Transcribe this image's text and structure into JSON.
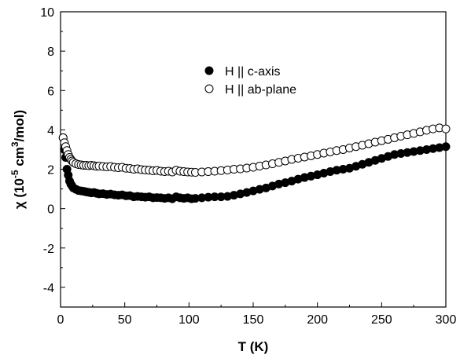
{
  "chart_data": {
    "type": "scatter",
    "xlabel": "T (K)",
    "ylabel": {
      "prefix": "χ (10",
      "exp1": "-5",
      "middle": " cm",
      "exp2": "3",
      "suffix": "/mol)"
    },
    "xlim": [
      0,
      300
    ],
    "ylim": [
      -5,
      10
    ],
    "x_ticks": [
      0,
      50,
      100,
      150,
      200,
      250,
      300
    ],
    "y_ticks": [
      -4,
      -2,
      0,
      2,
      4,
      6,
      8,
      10
    ],
    "grid": false,
    "legend_position": "upper-center",
    "series": [
      {
        "name": "H || c-axis",
        "marker": "filled-circle",
        "color": "#000000",
        "x": [
          2,
          3,
          4,
          5,
          6,
          7,
          8,
          9,
          10,
          12,
          14,
          16,
          18,
          20,
          22,
          24,
          26,
          28,
          30,
          33,
          36,
          39,
          42,
          45,
          48,
          51,
          54,
          57,
          60,
          63,
          66,
          69,
          72,
          75,
          78,
          81,
          84,
          87,
          90,
          93,
          96,
          99,
          102,
          105,
          110,
          115,
          120,
          125,
          130,
          135,
          140,
          145,
          150,
          155,
          160,
          165,
          170,
          175,
          180,
          185,
          190,
          195,
          200,
          205,
          210,
          215,
          220,
          225,
          230,
          235,
          240,
          245,
          250,
          255,
          260,
          265,
          270,
          275,
          280,
          285,
          290,
          295,
          300
        ],
        "y": [
          3.6,
          3.0,
          2.6,
          2.0,
          1.7,
          1.4,
          1.25,
          1.15,
          1.05,
          0.98,
          0.92,
          0.9,
          0.88,
          0.85,
          0.83,
          0.8,
          0.82,
          0.78,
          0.75,
          0.76,
          0.72,
          0.74,
          0.7,
          0.68,
          0.7,
          0.65,
          0.66,
          0.6,
          0.62,
          0.6,
          0.58,
          0.6,
          0.55,
          0.56,
          0.55,
          0.52,
          0.55,
          0.5,
          0.6,
          0.55,
          0.52,
          0.55,
          0.5,
          0.52,
          0.55,
          0.58,
          0.6,
          0.6,
          0.62,
          0.68,
          0.75,
          0.82,
          0.9,
          0.98,
          1.05,
          1.15,
          1.25,
          1.32,
          1.4,
          1.5,
          1.58,
          1.65,
          1.72,
          1.8,
          1.88,
          1.95,
          2.0,
          2.05,
          2.15,
          2.25,
          2.35,
          2.45,
          2.55,
          2.65,
          2.75,
          2.8,
          2.85,
          2.9,
          2.95,
          3.0,
          3.05,
          3.1,
          3.15
        ]
      },
      {
        "name": "H || ab-plane",
        "marker": "open-circle",
        "color": "#000000",
        "x": [
          2,
          3,
          4,
          5,
          6,
          7,
          8,
          9,
          10,
          12,
          14,
          16,
          18,
          20,
          22,
          24,
          26,
          28,
          30,
          33,
          36,
          39,
          42,
          45,
          48,
          51,
          54,
          57,
          60,
          63,
          66,
          69,
          72,
          75,
          78,
          81,
          84,
          87,
          90,
          93,
          96,
          99,
          102,
          105,
          110,
          115,
          120,
          125,
          130,
          135,
          140,
          145,
          150,
          155,
          160,
          165,
          170,
          175,
          180,
          185,
          190,
          195,
          200,
          205,
          210,
          215,
          220,
          225,
          230,
          235,
          240,
          245,
          250,
          255,
          260,
          265,
          270,
          275,
          280,
          285,
          290,
          295,
          300
        ],
        "y": [
          3.6,
          3.35,
          3.15,
          2.95,
          2.75,
          2.6,
          2.5,
          2.42,
          2.35,
          2.28,
          2.24,
          2.22,
          2.2,
          2.2,
          2.18,
          2.2,
          2.18,
          2.15,
          2.16,
          2.14,
          2.12,
          2.14,
          2.1,
          2.08,
          2.1,
          2.05,
          2.04,
          2.0,
          2.02,
          1.98,
          1.96,
          1.95,
          1.92,
          1.94,
          1.9,
          1.88,
          1.9,
          1.86,
          1.95,
          1.9,
          1.88,
          1.86,
          1.85,
          1.84,
          1.86,
          1.88,
          1.9,
          1.93,
          1.96,
          2.0,
          2.02,
          2.06,
          2.1,
          2.16,
          2.22,
          2.28,
          2.35,
          2.42,
          2.5,
          2.56,
          2.62,
          2.68,
          2.75,
          2.82,
          2.88,
          2.95,
          3.0,
          3.08,
          3.15,
          3.22,
          3.3,
          3.38,
          3.45,
          3.52,
          3.6,
          3.68,
          3.75,
          3.82,
          3.9,
          3.98,
          4.05,
          4.1,
          4.05
        ]
      }
    ]
  }
}
